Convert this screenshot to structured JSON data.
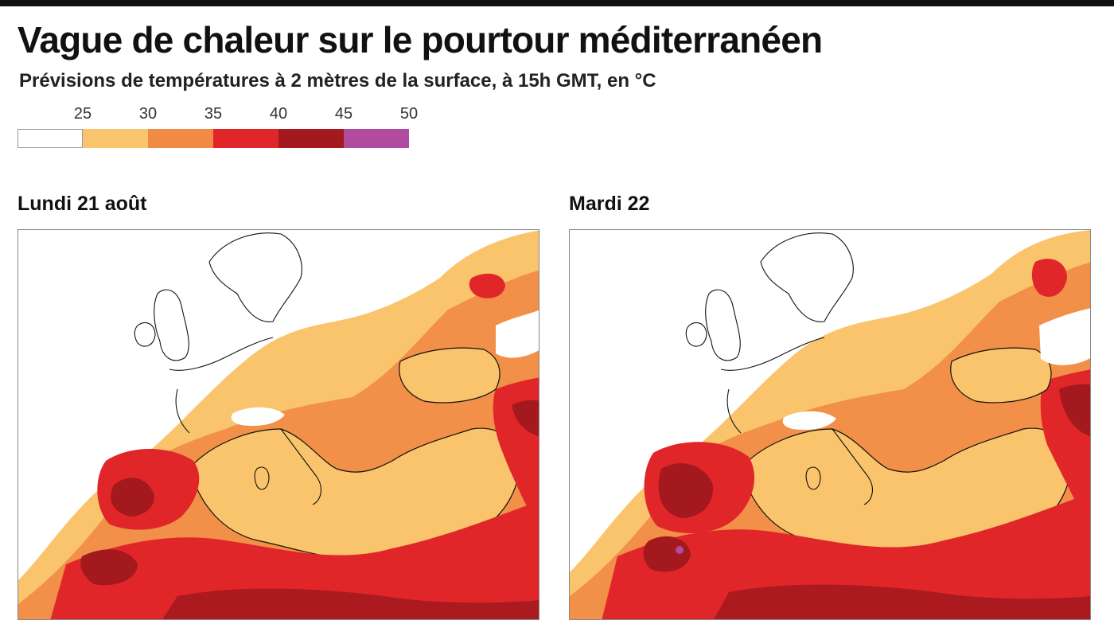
{
  "header": {
    "title": "Vague de chaleur sur le pourtour méditerranéen",
    "subtitle": "Prévisions de températures à 2 mètres de la surface, à 15h GMT, en °C"
  },
  "legend": {
    "ticks": [
      "25",
      "30",
      "35",
      "40",
      "45",
      "50"
    ],
    "classes": [
      {
        "range": "<25",
        "color": "#ffffff"
      },
      {
        "range": "25-30",
        "color": "#f9c46c"
      },
      {
        "range": "30-35",
        "color": "#f18a45"
      },
      {
        "range": "35-40",
        "color": "#e1262a"
      },
      {
        "range": "40-45",
        "color": "#a4191e"
      },
      {
        "range": "45-50",
        "color": "#b04b9f"
      }
    ]
  },
  "maps": [
    {
      "label": "Lundi 21 août"
    },
    {
      "label": "Mardi 22"
    }
  ],
  "colors": {
    "land_outline": "#111111",
    "sea": "#f9c46c",
    "background": "#ffffff"
  }
}
